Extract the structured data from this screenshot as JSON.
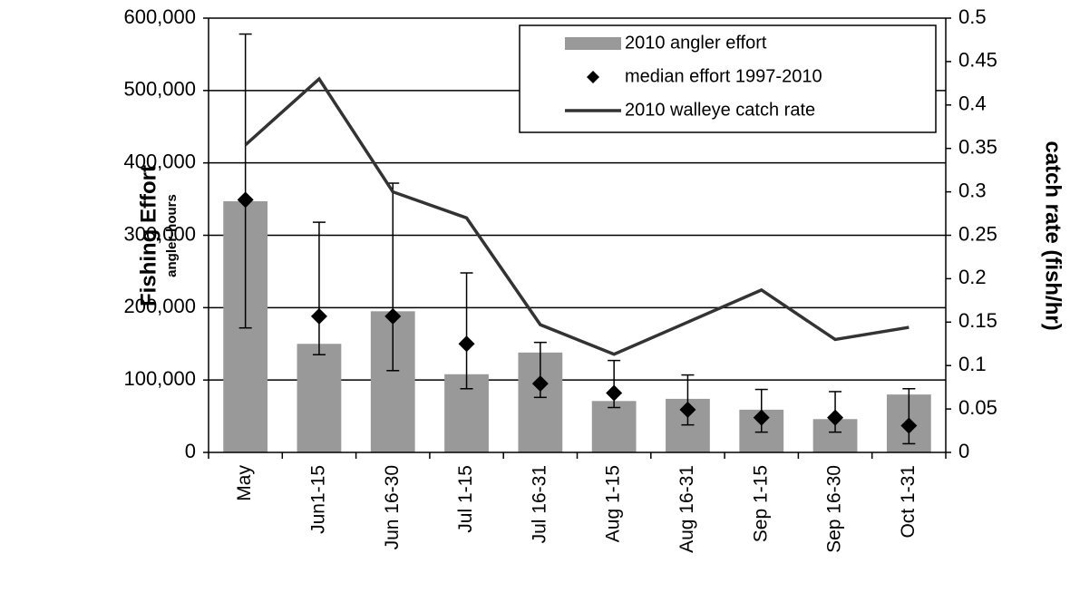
{
  "chart_data": {
    "type": "bar",
    "y_label": "Fishing Effort",
    "y_sublabel": "angler-hours",
    "y2_label": "catch rate (fish/hr)",
    "categories": [
      "May",
      "Jun1-15",
      "Jun 16-30",
      "Jul 1-15",
      "Jul 16-31",
      "Aug 1-15",
      "Aug 16-31",
      "Sep 1-15",
      "Sep 16-30",
      "Oct 1-31"
    ],
    "series": [
      {
        "name": "2010 angler effort",
        "type": "bar",
        "color": "#999999",
        "values": [
          347000,
          150000,
          195000,
          108000,
          138000,
          71000,
          74000,
          59000,
          46000,
          80000
        ]
      },
      {
        "name": "median effort 1997-2010",
        "type": "scatter",
        "color": "#000000",
        "values": [
          349000,
          188000,
          188000,
          150000,
          95000,
          82000,
          59000,
          48000,
          48000,
          37000
        ],
        "low": [
          172000,
          135000,
          113000,
          88000,
          76000,
          62000,
          38000,
          28000,
          28000,
          12000
        ],
        "high": [
          578000,
          318000,
          372000,
          248000,
          152000,
          127000,
          107000,
          87000,
          84000,
          88000
        ]
      },
      {
        "name": "2010 walleye catch rate",
        "type": "line",
        "color": "#333333",
        "axis": "y2",
        "values": [
          0.354,
          0.43,
          0.3,
          0.27,
          0.147,
          0.113,
          0.15,
          0.187,
          0.13,
          0.144
        ]
      }
    ],
    "ylim": [
      0,
      600000
    ],
    "yticks": [
      0,
      {
        "value": 100000,
        "label": "100,000"
      },
      {
        "value": 200000,
        "label": "200,000"
      },
      {
        "value": 300000,
        "label": "300,000"
      },
      {
        "value": 400000,
        "label": "400,000"
      },
      {
        "value": 500000,
        "label": "500,000"
      },
      {
        "value": 600000,
        "label": "600,000"
      }
    ],
    "y2lim": [
      0,
      0.5
    ],
    "y2ticks": [
      0,
      0.05,
      0.1,
      0.15,
      0.2,
      0.25,
      0.3,
      0.35,
      0.4,
      0.45,
      0.5
    ],
    "grid": true,
    "legend": "upper right"
  }
}
